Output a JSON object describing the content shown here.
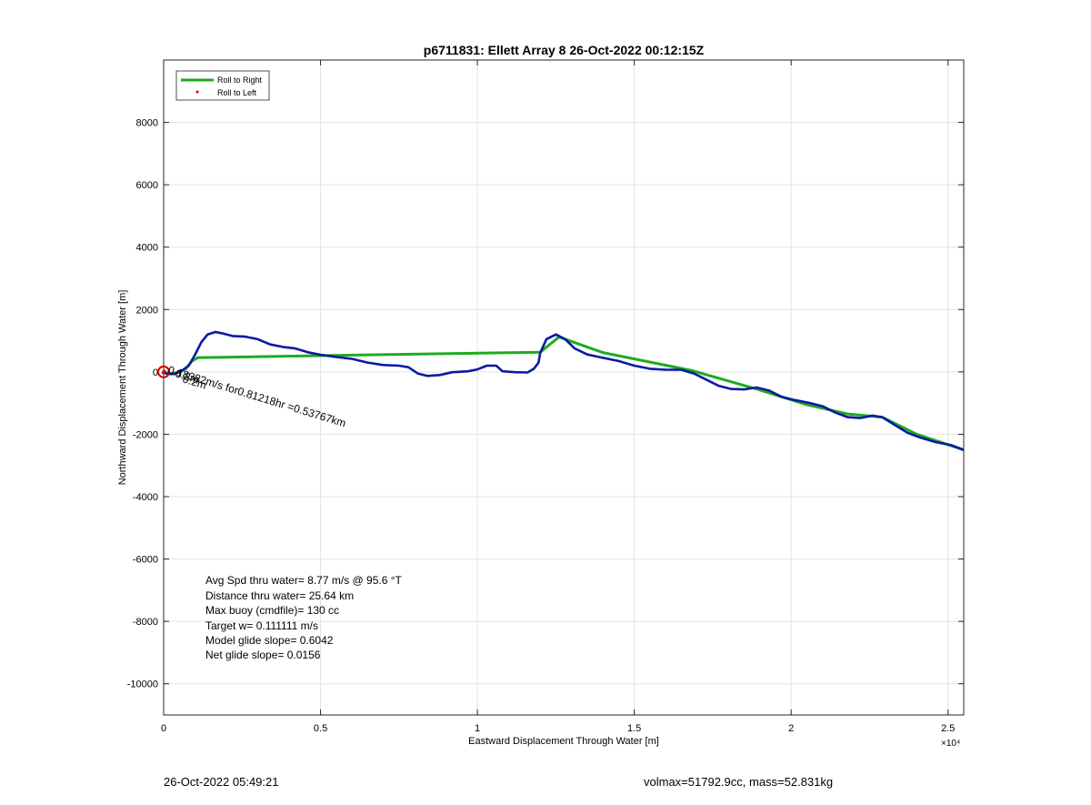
{
  "chart_data": {
    "type": "line",
    "title": "p6711831: Ellett Array 8 26-Oct-2022 00:12:15Z",
    "xlabel": "Eastward Displacement Through Water [m]",
    "ylabel": "Northward Displacement Through Water [m]",
    "x_exponent_label": "×10⁴",
    "xlim": [
      0,
      25500
    ],
    "ylim": [
      -11000,
      10000
    ],
    "grid": true,
    "legend_position": "top-left",
    "x_ticks": [
      {
        "value": 0,
        "label": "0"
      },
      {
        "value": 5000,
        "label": "0.5"
      },
      {
        "value": 10000,
        "label": "1"
      },
      {
        "value": 15000,
        "label": "1.5"
      },
      {
        "value": 20000,
        "label": "2"
      },
      {
        "value": 25000,
        "label": "2.5"
      }
    ],
    "y_ticks": [
      {
        "value": 8000,
        "label": "8000"
      },
      {
        "value": 6000,
        "label": "6000"
      },
      {
        "value": 4000,
        "label": "4000"
      },
      {
        "value": 2000,
        "label": "2000"
      },
      {
        "value": 0,
        "label": "0"
      },
      {
        "value": -2000,
        "label": "-2000"
      },
      {
        "value": -4000,
        "label": "-4000"
      },
      {
        "value": -6000,
        "label": "-6000"
      },
      {
        "value": -8000,
        "label": "-8000"
      },
      {
        "value": -10000,
        "label": "-10000"
      }
    ],
    "series": [
      {
        "name": "Roll to Right",
        "color": "#1faa1f",
        "points": [
          [
            0,
            -20
          ],
          [
            150,
            -50
          ],
          [
            300,
            -50
          ],
          [
            500,
            -10
          ],
          [
            700,
            100
          ],
          [
            900,
            350
          ],
          [
            1100,
            460
          ],
          [
            2000,
            470
          ],
          [
            5000,
            520
          ],
          [
            10000,
            600
          ],
          [
            12000,
            630
          ],
          [
            12600,
            1120
          ],
          [
            14000,
            620
          ],
          [
            16800,
            50
          ],
          [
            18900,
            -550
          ],
          [
            20500,
            -1050
          ],
          [
            21800,
            -1350
          ],
          [
            22900,
            -1450
          ],
          [
            24000,
            -2000
          ],
          [
            25500,
            -2500
          ]
        ]
      },
      {
        "name": "Roll to Left",
        "color": "#dd0000",
        "points": [
          [
            0,
            0
          ],
          [
            20,
            30
          ],
          [
            -20,
            -20
          ]
        ]
      },
      {
        "color": "#0a1aa0",
        "points": [
          [
            0,
            -20
          ],
          [
            100,
            -60
          ],
          [
            300,
            -70
          ],
          [
            550,
            20
          ],
          [
            800,
            200
          ],
          [
            1000,
            550
          ],
          [
            1200,
            950
          ],
          [
            1400,
            1200
          ],
          [
            1650,
            1280
          ],
          [
            1900,
            1230
          ],
          [
            2200,
            1150
          ],
          [
            2600,
            1130
          ],
          [
            3000,
            1050
          ],
          [
            3400,
            880
          ],
          [
            3800,
            800
          ],
          [
            4200,
            750
          ],
          [
            4600,
            630
          ],
          [
            5000,
            550
          ],
          [
            5500,
            480
          ],
          [
            6000,
            420
          ],
          [
            6500,
            300
          ],
          [
            7000,
            220
          ],
          [
            7500,
            200
          ],
          [
            7800,
            150
          ],
          [
            8100,
            -50
          ],
          [
            8400,
            -130
          ],
          [
            8800,
            -100
          ],
          [
            9200,
            -10
          ],
          [
            9700,
            20
          ],
          [
            10000,
            80
          ],
          [
            10300,
            200
          ],
          [
            10600,
            200
          ],
          [
            10800,
            20
          ],
          [
            11200,
            -10
          ],
          [
            11600,
            -20
          ],
          [
            11800,
            100
          ],
          [
            11950,
            300
          ],
          [
            12000,
            600
          ],
          [
            12200,
            1050
          ],
          [
            12500,
            1200
          ],
          [
            12800,
            1050
          ],
          [
            13100,
            750
          ],
          [
            13500,
            560
          ],
          [
            14000,
            450
          ],
          [
            14500,
            350
          ],
          [
            15000,
            200
          ],
          [
            15500,
            100
          ],
          [
            16000,
            70
          ],
          [
            16500,
            70
          ],
          [
            16900,
            -50
          ],
          [
            17300,
            -250
          ],
          [
            17700,
            -450
          ],
          [
            18100,
            -550
          ],
          [
            18500,
            -560
          ],
          [
            18900,
            -500
          ],
          [
            19300,
            -600
          ],
          [
            19700,
            -800
          ],
          [
            20100,
            -900
          ],
          [
            20600,
            -1000
          ],
          [
            21000,
            -1100
          ],
          [
            21400,
            -1300
          ],
          [
            21800,
            -1450
          ],
          [
            22200,
            -1480
          ],
          [
            22600,
            -1400
          ],
          [
            22900,
            -1450
          ],
          [
            23300,
            -1700
          ],
          [
            23700,
            -1950
          ],
          [
            24100,
            -2100
          ],
          [
            24600,
            -2250
          ],
          [
            25100,
            -2350
          ],
          [
            25500,
            -2500
          ]
        ]
      }
    ],
    "summary_lines": [
      "Avg Spd thru water=  8.77 m/s @  95.6 °T",
      "Distance thru water= 25.64 km",
      "Max buoy (cmdfile)= 130 cc",
      "Target w= 0.111111 m/s",
      "Model glide slope= 0.6042",
      "Net glide slope= 0.0156"
    ],
    "current_annotation": "0.18382m/s for0.81218hr =0.53767km",
    "overlap_labels": [
      "0.2m",
      "0.2m"
    ]
  },
  "footer": {
    "date": "26-Oct-2022 05:49:21",
    "mass_info": "volmax=51792.9cc, mass=52.831kg"
  }
}
